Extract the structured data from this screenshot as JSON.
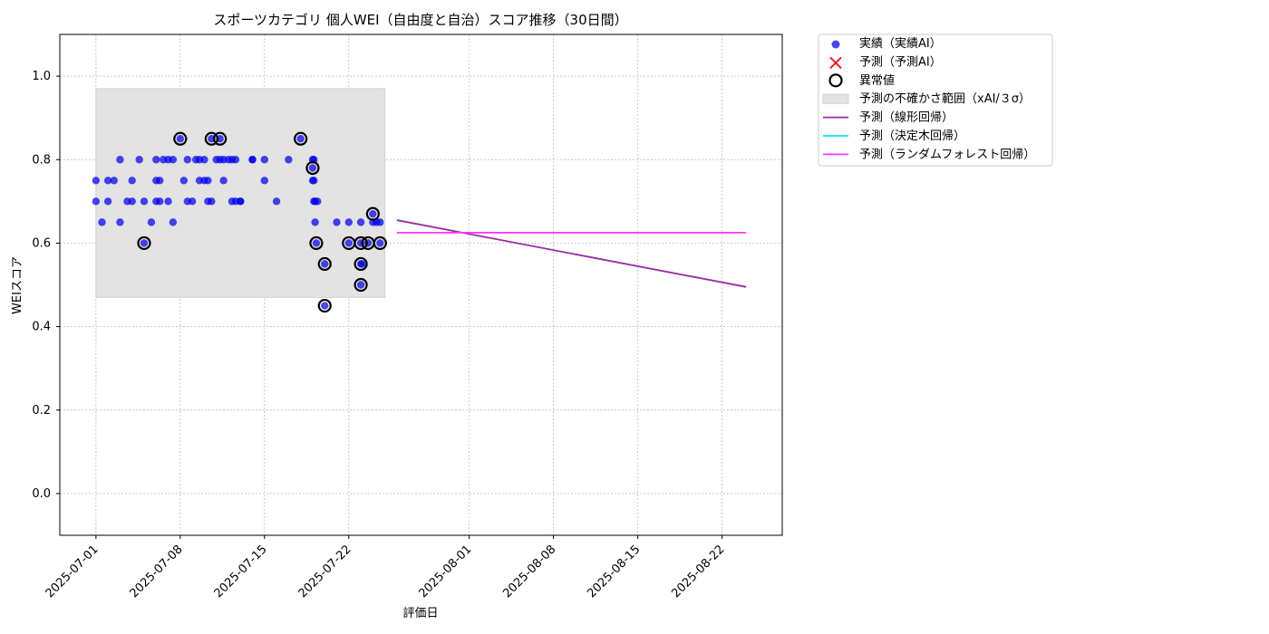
{
  "chart_data": {
    "type": "scatter",
    "title": "スポーツカテゴリ 個人WEI（自由度と自治）スコア推移（30日間）",
    "xlabel": "評価日",
    "ylabel": "WEIスコア",
    "xlim": [
      "2025-06-28",
      "2025-08-27"
    ],
    "ylim": [
      -0.1,
      1.1
    ],
    "y_ticks": [
      0.0,
      0.2,
      0.4,
      0.6,
      0.8,
      1.0
    ],
    "x_ticks": [
      "2025-07-01",
      "2025-07-08",
      "2025-07-15",
      "2025-07-22",
      "2025-08-01",
      "2025-08-08",
      "2025-08-15",
      "2025-08-22"
    ],
    "grid": true,
    "legend_position": "outside-upper-right",
    "colors": {
      "actual": "#0000ee",
      "predicted": "#ff0000",
      "anomaly": "#000000",
      "uncertainty": "#e3e3e3",
      "linear": "#9a2aa0",
      "tree": "#00e5ff",
      "forest": "#ff33ff"
    },
    "legend": [
      {
        "key": "actual",
        "label": "実績（実績AI）"
      },
      {
        "key": "predicted",
        "label": "予測（予測AI）"
      },
      {
        "key": "anomaly",
        "label": "異常値"
      },
      {
        "key": "uncertainty",
        "label": "予測の不確かさ範囲（xAI/３σ）"
      },
      {
        "key": "linear",
        "label": "予測（線形回帰）"
      },
      {
        "key": "tree",
        "label": "予測（決定木回帰）"
      },
      {
        "key": "forest",
        "label": "予測（ランダムフォレスト回帰）"
      }
    ],
    "uncertainty_band": {
      "x": [
        "2025-07-01",
        "2025-07-25"
      ],
      "y": [
        0.47,
        0.97
      ]
    },
    "actual_points": [
      {
        "x": "2025-07-01",
        "y": 0.75
      },
      {
        "x": "2025-07-01",
        "y": 0.7
      },
      {
        "x": "2025-07-01.5",
        "y": 0.65
      },
      {
        "x": "2025-07-02",
        "y": 0.75
      },
      {
        "x": "2025-07-02",
        "y": 0.7
      },
      {
        "x": "2025-07-02.5",
        "y": 0.75
      },
      {
        "x": "2025-07-03",
        "y": 0.8
      },
      {
        "x": "2025-07-03",
        "y": 0.65
      },
      {
        "x": "2025-07-03.6",
        "y": 0.7
      },
      {
        "x": "2025-07-04",
        "y": 0.75
      },
      {
        "x": "2025-07-04",
        "y": 0.7
      },
      {
        "x": "2025-07-04.6",
        "y": 0.8
      },
      {
        "x": "2025-07-05",
        "y": 0.7
      },
      {
        "x": "2025-07-05",
        "y": 0.6
      },
      {
        "x": "2025-07-05.6",
        "y": 0.65
      },
      {
        "x": "2025-07-06",
        "y": 0.75
      },
      {
        "x": "2025-07-06",
        "y": 0.7
      },
      {
        "x": "2025-07-06",
        "y": 0.8
      },
      {
        "x": "2025-07-06.3",
        "y": 0.75
      },
      {
        "x": "2025-07-06.3",
        "y": 0.7
      },
      {
        "x": "2025-07-06.6",
        "y": 0.8
      },
      {
        "x": "2025-07-07",
        "y": 0.8
      },
      {
        "x": "2025-07-07",
        "y": 0.7
      },
      {
        "x": "2025-07-07.4",
        "y": 0.8
      },
      {
        "x": "2025-07-07.4",
        "y": 0.65
      },
      {
        "x": "2025-07-08",
        "y": 0.85
      },
      {
        "x": "2025-07-08.3",
        "y": 0.75
      },
      {
        "x": "2025-07-08.6",
        "y": 0.8
      },
      {
        "x": "2025-07-08.6",
        "y": 0.7
      },
      {
        "x": "2025-07-09",
        "y": 0.7
      },
      {
        "x": "2025-07-09.3",
        "y": 0.8
      },
      {
        "x": "2025-07-09.6",
        "y": 0.8
      },
      {
        "x": "2025-07-09.6",
        "y": 0.75
      },
      {
        "x": "2025-07-10",
        "y": 0.8
      },
      {
        "x": "2025-07-10",
        "y": 0.75
      },
      {
        "x": "2025-07-10.3",
        "y": 0.7
      },
      {
        "x": "2025-07-10.3",
        "y": 0.75
      },
      {
        "x": "2025-07-10.6",
        "y": 0.85
      },
      {
        "x": "2025-07-10.6",
        "y": 0.7
      },
      {
        "x": "2025-07-11",
        "y": 0.8
      },
      {
        "x": "2025-07-11.3",
        "y": 0.85
      },
      {
        "x": "2025-07-11.3",
        "y": 0.8
      },
      {
        "x": "2025-07-11.6",
        "y": 0.8
      },
      {
        "x": "2025-07-11.6",
        "y": 0.75
      },
      {
        "x": "2025-07-12",
        "y": 0.8
      },
      {
        "x": "2025-07-12.3",
        "y": 0.8
      },
      {
        "x": "2025-07-12.3",
        "y": 0.7
      },
      {
        "x": "2025-07-12.6",
        "y": 0.8
      },
      {
        "x": "2025-07-12.6",
        "y": 0.7
      },
      {
        "x": "2025-07-13",
        "y": 0.7
      },
      {
        "x": "2025-07-13",
        "y": 0.7
      },
      {
        "x": "2025-07-14",
        "y": 0.8
      },
      {
        "x": "2025-07-14",
        "y": 0.8
      },
      {
        "x": "2025-07-15",
        "y": 0.8
      },
      {
        "x": "2025-07-15",
        "y": 0.75
      },
      {
        "x": "2025-07-16",
        "y": 0.7
      },
      {
        "x": "2025-07-17",
        "y": 0.8
      },
      {
        "x": "2025-07-18",
        "y": 0.85
      },
      {
        "x": "2025-07-19",
        "y": 0.8
      },
      {
        "x": "2025-07-19",
        "y": 0.75
      },
      {
        "x": "2025-07-19",
        "y": 0.78
      },
      {
        "x": "2025-07-19.1",
        "y": 0.8
      },
      {
        "x": "2025-07-19.1",
        "y": 0.7
      },
      {
        "x": "2025-07-19.1",
        "y": 0.75
      },
      {
        "x": "2025-07-19.2",
        "y": 0.65
      },
      {
        "x": "2025-07-19.2",
        "y": 0.7
      },
      {
        "x": "2025-07-19.3",
        "y": 0.6
      },
      {
        "x": "2025-07-19.4",
        "y": 0.7
      },
      {
        "x": "2025-07-20",
        "y": 0.55
      },
      {
        "x": "2025-07-20",
        "y": 0.45
      },
      {
        "x": "2025-07-21",
        "y": 0.65
      },
      {
        "x": "2025-07-22",
        "y": 0.65
      },
      {
        "x": "2025-07-22",
        "y": 0.6
      },
      {
        "x": "2025-07-23",
        "y": 0.65
      },
      {
        "x": "2025-07-23",
        "y": 0.6
      },
      {
        "x": "2025-07-23",
        "y": 0.55
      },
      {
        "x": "2025-07-23",
        "y": 0.5
      },
      {
        "x": "2025-07-23.1",
        "y": 0.55
      },
      {
        "x": "2025-07-23.6",
        "y": 0.6
      },
      {
        "x": "2025-07-24",
        "y": 0.65
      },
      {
        "x": "2025-07-24",
        "y": 0.67
      },
      {
        "x": "2025-07-24.3",
        "y": 0.65
      },
      {
        "x": "2025-07-24.6",
        "y": 0.6
      },
      {
        "x": "2025-07-24.6",
        "y": 0.65
      }
    ],
    "anomalies": [
      {
        "x": "2025-07-05",
        "y": 0.6
      },
      {
        "x": "2025-07-08",
        "y": 0.85
      },
      {
        "x": "2025-07-10.6",
        "y": 0.85
      },
      {
        "x": "2025-07-11.3",
        "y": 0.85
      },
      {
        "x": "2025-07-18",
        "y": 0.85
      },
      {
        "x": "2025-07-19",
        "y": 0.78
      },
      {
        "x": "2025-07-19.3",
        "y": 0.6
      },
      {
        "x": "2025-07-20",
        "y": 0.55
      },
      {
        "x": "2025-07-20",
        "y": 0.45
      },
      {
        "x": "2025-07-22",
        "y": 0.6
      },
      {
        "x": "2025-07-23",
        "y": 0.6
      },
      {
        "x": "2025-07-23",
        "y": 0.55
      },
      {
        "x": "2025-07-23",
        "y": 0.5
      },
      {
        "x": "2025-07-23.6",
        "y": 0.6
      },
      {
        "x": "2025-07-24",
        "y": 0.67
      },
      {
        "x": "2025-07-24.6",
        "y": 0.6
      }
    ],
    "lines": [
      {
        "key": "linear",
        "x": [
          "2025-07-26",
          "2025-08-24"
        ],
        "y": [
          0.655,
          0.495
        ]
      },
      {
        "key": "forest",
        "x": [
          "2025-07-26",
          "2025-08-24"
        ],
        "y": [
          0.625,
          0.625
        ]
      }
    ]
  }
}
